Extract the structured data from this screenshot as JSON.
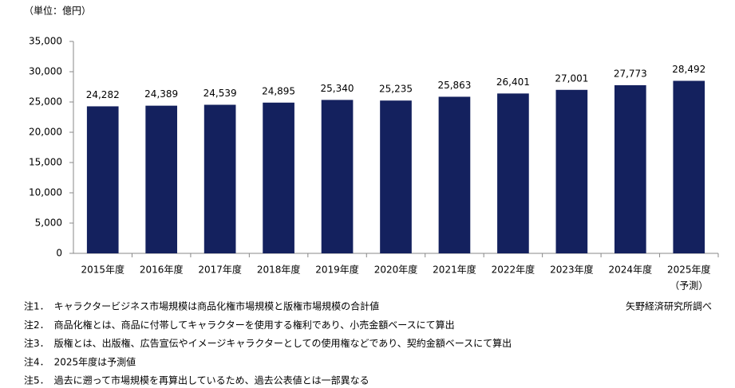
{
  "chart_data": {
    "type": "bar",
    "unit_label": "（単位：億円）",
    "categories": [
      "2015年度",
      "2016年度",
      "2017年度",
      "2018年度",
      "2019年度",
      "2020年度",
      "2021年度",
      "2022年度",
      "2023年度",
      "2024年度",
      "2025年度"
    ],
    "category_annotation": "（予測）",
    "values": [
      24282,
      24389,
      24539,
      24895,
      25340,
      25235,
      25863,
      26401,
      27001,
      27773,
      28492
    ],
    "value_labels": [
      "24,282",
      "24,389",
      "24,539",
      "24,895",
      "25,340",
      "25,235",
      "25,863",
      "26,401",
      "27,001",
      "27,773",
      "28,492"
    ],
    "color": "#14215e",
    "ylim": [
      0,
      35000
    ],
    "yticks": [
      0,
      {
        "value": 5000,
        "label": "5,000"
      },
      {
        "value": 10000,
        "label": "10,000"
      },
      {
        "value": 15000,
        "label": "15,000"
      },
      {
        "value": 20000,
        "label": "20,000"
      },
      {
        "value": 25000,
        "label": "25,000"
      },
      {
        "value": 30000,
        "label": "30,000"
      },
      {
        "value": 35000,
        "label": "35,000"
      }
    ],
    "grid": false,
    "notes": [
      "注1．　キャラクタービジネス市場規模は商品化権市場規模と版権市場規模の合計値",
      "注2．　商品化権とは、商品に付帯してキャラクターを使用する権利であり、小売金額ベースにて算出",
      "注3．　版権とは、出版権、広告宣伝やイメージキャラクターとしての使用権などであり、契約金額ベースにて算出",
      "注4．　2025年度は予測値",
      "注5．　過去に遡って市場規模を再算出しているため、過去公表値とは一部異なる"
    ],
    "source": "矢野経済研究所調べ"
  }
}
